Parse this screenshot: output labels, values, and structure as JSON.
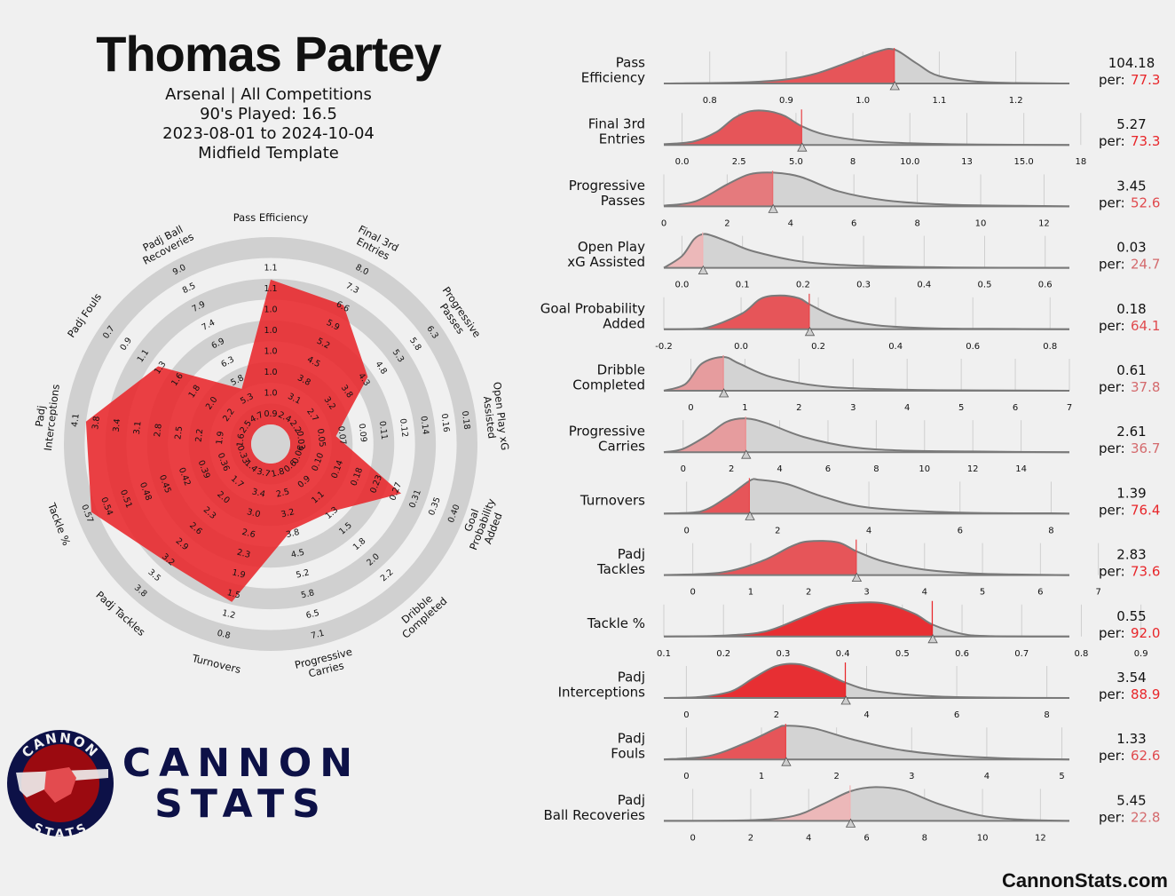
{
  "header": {
    "player_name": "Thomas Partey",
    "team_competition": "Arsenal | All Competitions",
    "nineties_played": "90's Played: 16.5",
    "date_range": "2023-08-01 to 2024-10-04",
    "template": "Midfield Template"
  },
  "brand": {
    "ring_top": "CANNON",
    "ring_bottom": "STATS",
    "word_top": "CANNON",
    "word_bottom": "STATS",
    "website": "CannonStats.com"
  },
  "colors": {
    "background": "#f0f0f0",
    "accent_red": "#e8262a",
    "ring_grey": "#d0d0d0",
    "curve_grey": "#7a7a7a",
    "navy": "#0d1147",
    "maroon": "#9b0a10"
  },
  "chart_data": [
    {
      "type": "radar",
      "metrics": [
        {
          "name": "Pass Efficiency",
          "percentile": 77.3,
          "rings": [
            "0.9",
            "1.0",
            "1.0",
            "1.0",
            "1.0",
            "1.0",
            "1.1",
            "1.1"
          ]
        },
        {
          "name": "Final 3rd\nEntries",
          "percentile": 73.3,
          "rings": [
            "2.4",
            "3.1",
            "3.8",
            "4.5",
            "5.2",
            "5.9",
            "6.6",
            "7.3",
            "8.0"
          ]
        },
        {
          "name": "Progressive\nPasses",
          "percentile": 52.6,
          "rings": [
            "2.2",
            "2.7",
            "3.2",
            "3.8",
            "4.3",
            "4.8",
            "5.3",
            "5.8",
            "6.3"
          ]
        },
        {
          "name": "Open Play xG\nAssisted",
          "percentile": 24.7,
          "rings": [
            "0.03",
            "0.05",
            "0.07",
            "0.09",
            "0.11",
            "0.12",
            "0.14",
            "0.16",
            "0.18"
          ]
        },
        {
          "name": "Goal\nProbability\nAdded",
          "percentile": 64.1,
          "rings": [
            "0.06",
            "0.10",
            "0.14",
            "0.18",
            "0.23",
            "0.27",
            "0.31",
            "0.35",
            "0.40"
          ]
        },
        {
          "name": "Dribble\nCompleted",
          "percentile": 37.8,
          "rings": [
            "0.6",
            "0.9",
            "1.1",
            "1.3",
            "1.5",
            "1.8",
            "2.0",
            "2.2"
          ]
        },
        {
          "name": "Progressive\nCarries",
          "percentile": 36.7,
          "rings": [
            "1.8",
            "2.5",
            "3.2",
            "3.8",
            "4.5",
            "5.2",
            "5.8",
            "6.5",
            "7.1"
          ]
        },
        {
          "name": "Turnovers",
          "percentile": 76.4,
          "rings": [
            "3.7",
            "3.4",
            "3.0",
            "2.6",
            "2.3",
            "1.9",
            "1.5",
            "1.2",
            "0.8"
          ]
        },
        {
          "name": "Padj Tackles",
          "percentile": 73.6,
          "rings": [
            "1.4",
            "1.7",
            "2.0",
            "2.3",
            "2.6",
            "2.9",
            "3.2",
            "3.5",
            "3.8"
          ]
        },
        {
          "name": "Tackle %",
          "percentile": 92.0,
          "rings": [
            "0.33",
            "0.36",
            "0.39",
            "0.42",
            "0.45",
            "0.48",
            "0.51",
            "0.54",
            "0.57"
          ]
        },
        {
          "name": "Padj\nInterceptions",
          "percentile": 88.9,
          "rings": [
            "1.6",
            "1.9",
            "2.2",
            "2.5",
            "2.8",
            "3.1",
            "3.4",
            "3.8",
            "4.1"
          ]
        },
        {
          "name": "Padj Fouls",
          "percentile": 62.6,
          "rings": [
            "2.5",
            "2.2",
            "2.0",
            "1.8",
            "1.6",
            "1.3",
            "1.1",
            "0.9",
            "0.7"
          ]
        },
        {
          "name": "Padj Ball\nRecoveries",
          "percentile": 22.8,
          "rings": [
            "4.7",
            "5.3",
            "5.8",
            "6.3",
            "6.9",
            "7.4",
            "7.9",
            "8.5",
            "9.0"
          ]
        }
      ]
    },
    {
      "type": "area",
      "panels": [
        {
          "name": "Pass\nEfficiency",
          "value": "104.18",
          "percentile": "77.3",
          "ticks": [
            0.8,
            0.9,
            1.0,
            1.1,
            1.2
          ],
          "x": [
            0.74,
            0.84,
            0.9,
            0.94,
            0.98,
            1.02,
            1.042,
            1.07,
            1.1,
            1.16,
            1.27
          ],
          "y": [
            0,
            0.03,
            0.12,
            0.3,
            0.62,
            0.95,
            1.0,
            0.6,
            0.22,
            0.04,
            0
          ],
          "player_x": 1.0418
        },
        {
          "name": "Final 3rd\nEntries",
          "value": "5.27",
          "percentile": "73.3",
          "ticks": [
            0.0,
            2.5,
            5.0,
            7.5,
            10.0,
            12.5,
            15.0,
            17.5
          ],
          "x": [
            -0.8,
            0.5,
            1.5,
            2.3,
            3.0,
            3.8,
            4.5,
            5.27,
            6.3,
            8.0,
            10.0,
            13.0,
            17.0
          ],
          "y": [
            0.02,
            0.1,
            0.38,
            0.8,
            1.0,
            1.0,
            0.86,
            0.55,
            0.3,
            0.12,
            0.05,
            0.01,
            0
          ],
          "player_x": 5.27
        },
        {
          "name": "Progressive\nPasses",
          "value": "3.45",
          "percentile": "52.6",
          "ticks": [
            0,
            2,
            4,
            6,
            8,
            10,
            12
          ],
          "x": [
            0,
            1.0,
            2.0,
            2.7,
            3.45,
            4.3,
            5.5,
            7.0,
            9.0,
            12.0,
            12.8
          ],
          "y": [
            0.02,
            0.15,
            0.65,
            0.95,
            1.0,
            0.88,
            0.45,
            0.18,
            0.05,
            0.01,
            0
          ],
          "player_x": 3.45
        },
        {
          "name": "Open Play\nxG Assisted",
          "value": "0.03",
          "percentile": "24.7",
          "ticks": [
            0.0,
            0.1,
            0.2,
            0.3,
            0.4,
            0.5,
            0.6
          ],
          "x": [
            -0.03,
            0.0,
            0.02,
            0.035,
            0.05,
            0.08,
            0.12,
            0.2,
            0.3,
            0.45,
            0.64
          ],
          "y": [
            0,
            0.35,
            0.85,
            1.0,
            0.95,
            0.75,
            0.48,
            0.18,
            0.06,
            0.01,
            0
          ],
          "player_x": 0.035
        },
        {
          "name": "Goal Probability\nAdded",
          "value": "0.18",
          "percentile": "64.1",
          "ticks": [
            -0.2,
            0.0,
            0.2,
            0.4,
            0.6,
            0.8
          ],
          "x": [
            -0.2,
            -0.1,
            0.0,
            0.05,
            0.1,
            0.15,
            0.18,
            0.25,
            0.35,
            0.5,
            0.7,
            0.85
          ],
          "y": [
            0,
            0.02,
            0.45,
            0.9,
            1.0,
            0.92,
            0.72,
            0.35,
            0.12,
            0.03,
            0.01,
            0
          ],
          "player_x": 0.178
        },
        {
          "name": "Dribble\nCompleted",
          "value": "0.61",
          "percentile": "37.8",
          "ticks": [
            0,
            1,
            2,
            3,
            4,
            5,
            6,
            7
          ],
          "x": [
            -0.5,
            -0.1,
            0.2,
            0.6,
            0.9,
            1.5,
            2.5,
            4.0,
            5.5,
            7.0
          ],
          "y": [
            0,
            0.2,
            0.8,
            1.0,
            0.8,
            0.4,
            0.12,
            0.03,
            0.01,
            0
          ],
          "player_x": 0.61
        },
        {
          "name": "Progressive\nCarries",
          "value": "2.61",
          "percentile": "36.7",
          "ticks": [
            0,
            2,
            4,
            6,
            8,
            10,
            12,
            14
          ],
          "x": [
            -0.8,
            0.0,
            1.0,
            1.8,
            2.61,
            3.5,
            5.0,
            7.0,
            9.0,
            12.0,
            16.0
          ],
          "y": [
            0,
            0.1,
            0.5,
            0.9,
            1.0,
            0.85,
            0.45,
            0.15,
            0.05,
            0.02,
            0
          ],
          "player_x": 2.61
        },
        {
          "name": "Turnovers",
          "value": "1.39",
          "percentile": "76.4",
          "ticks": [
            0,
            2,
            4,
            6,
            8
          ],
          "x": [
            -0.5,
            0.3,
            0.9,
            1.39,
            1.6,
            2.2,
            3.0,
            4.0,
            6.0,
            8.0,
            8.4
          ],
          "y": [
            0,
            0.06,
            0.5,
            0.98,
            1.0,
            0.88,
            0.5,
            0.18,
            0.03,
            0.01,
            0
          ],
          "player_x": 1.39
        },
        {
          "name": "Padj\nTackles",
          "value": "2.83",
          "percentile": "73.6",
          "ticks": [
            0,
            1,
            2,
            3,
            4,
            5,
            6,
            7
          ],
          "x": [
            -0.5,
            0.5,
            1.2,
            1.7,
            2.0,
            2.5,
            2.83,
            3.3,
            4.0,
            5.0,
            6.5
          ],
          "y": [
            0,
            0.08,
            0.42,
            0.85,
            1.0,
            0.97,
            0.7,
            0.4,
            0.16,
            0.04,
            0
          ],
          "player_x": 2.83
        },
        {
          "name": "Tackle %",
          "value": "0.55",
          "percentile": "92.0",
          "ticks": [
            0.1,
            0.2,
            0.3,
            0.4,
            0.5,
            0.6,
            0.7,
            0.8,
            0.9
          ],
          "x": [
            0.1,
            0.2,
            0.27,
            0.33,
            0.38,
            0.42,
            0.47,
            0.52,
            0.551,
            0.6,
            0.65,
            0.78
          ],
          "y": [
            0,
            0.03,
            0.15,
            0.55,
            0.9,
            1.0,
            0.98,
            0.68,
            0.35,
            0.08,
            0.01,
            0
          ],
          "player_x": 0.551
        },
        {
          "name": "Padj\nInterceptions",
          "value": "3.54",
          "percentile": "88.9",
          "ticks": [
            0,
            2,
            4,
            6,
            8
          ],
          "x": [
            -0.5,
            0.3,
            1.0,
            1.5,
            2.0,
            2.5,
            3.0,
            3.54,
            4.2,
            5.5,
            7.0,
            8.5
          ],
          "y": [
            0,
            0.03,
            0.2,
            0.6,
            0.95,
            1.0,
            0.78,
            0.45,
            0.2,
            0.05,
            0.01,
            0
          ],
          "player_x": 3.54
        },
        {
          "name": "Padj\nFouls",
          "value": "1.33",
          "percentile": "62.6",
          "ticks": [
            0,
            1,
            2,
            3,
            4,
            5
          ],
          "x": [
            -0.3,
            0.3,
            0.8,
            1.2,
            1.33,
            1.7,
            2.2,
            2.8,
            3.5,
            4.3,
            5.1
          ],
          "y": [
            0,
            0.1,
            0.5,
            0.92,
            1.0,
            0.92,
            0.6,
            0.3,
            0.12,
            0.03,
            0
          ],
          "player_x": 1.33
        },
        {
          "name": "Padj\nBall Recoveries",
          "value": "5.45",
          "percentile": "22.8",
          "ticks": [
            0,
            2,
            4,
            6,
            8,
            10,
            12
          ],
          "x": [
            -1.0,
            2.0,
            3.5,
            4.5,
            5.45,
            6.3,
            7.3,
            8.5,
            10.0,
            11.5,
            13.0
          ],
          "y": [
            0,
            0.02,
            0.15,
            0.5,
            0.88,
            1.0,
            0.9,
            0.5,
            0.15,
            0.03,
            0
          ],
          "player_x": 5.45
        }
      ]
    }
  ]
}
